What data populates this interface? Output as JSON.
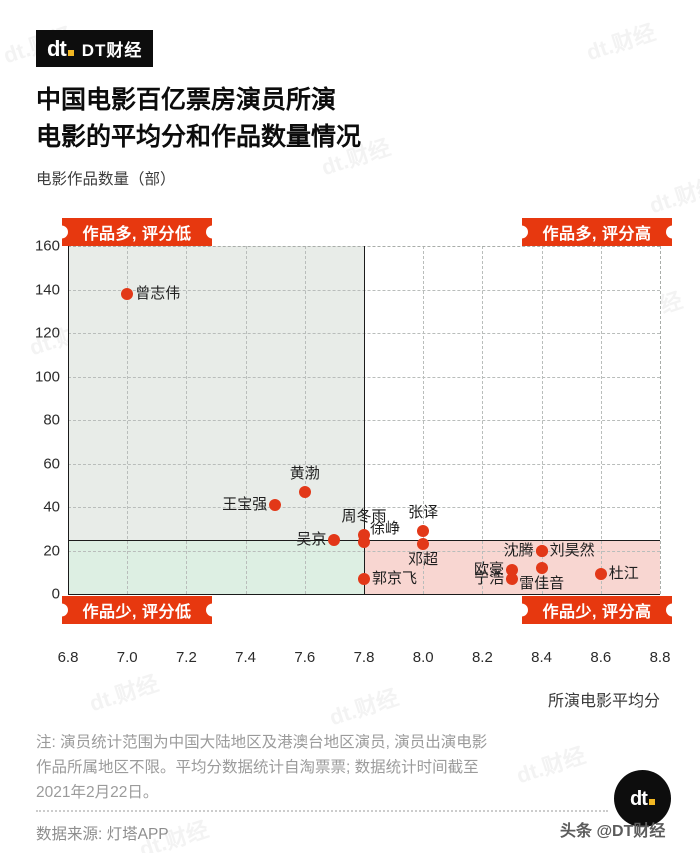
{
  "header": {
    "logo_mark": "dt",
    "brand": "DT财经"
  },
  "title": {
    "line1": "中国电影百亿票房演员所演",
    "line2": "电影的平均分和作品数量情况"
  },
  "watermark": {
    "text": "dt.财经",
    "handle": "头条 @DT财经"
  },
  "chart_data": {
    "type": "scatter",
    "title": "中国电影百亿票房演员所演电影的平均分和作品数量情况",
    "xlabel": "所演电影平均分",
    "ylabel": "电影作品数量（部）",
    "xlim": [
      6.8,
      8.8
    ],
    "ylim": [
      0,
      160
    ],
    "grid": "dashed",
    "legend": "none",
    "x_ticks": [
      6.8,
      7.0,
      7.2,
      7.4,
      7.6,
      7.8,
      8.0,
      8.2,
      8.4,
      8.6,
      8.8
    ],
    "x_tick_labels": [
      "6.8",
      "7.0",
      "7.2",
      "7.4",
      "7.6",
      "7.8",
      "8.0",
      "8.2",
      "8.4",
      "8.6",
      "8.8"
    ],
    "y_ticks": [
      0,
      20,
      40,
      60,
      80,
      100,
      120,
      140,
      160
    ],
    "y_tick_labels": [
      "0",
      "20",
      "40",
      "60",
      "80",
      "100",
      "120",
      "140",
      "160"
    ],
    "quadrant_divider": {
      "x": 7.8,
      "y": 25
    },
    "quadrant_labels": {
      "top_left": "作品多, 评分低",
      "top_right": "作品多, 评分高",
      "bottom_left": "作品少, 评分低",
      "bottom_right": "作品少, 评分高"
    },
    "colors": {
      "badge_red": "#e7380f",
      "dot_red": "#e23818",
      "quad_top_left": "#e8ece8",
      "quad_top_right": "#ffffff",
      "quad_bottom_left": "#ddefe3",
      "quad_bottom_right": "#f8d6d1"
    },
    "points": [
      {
        "name": "曾志伟",
        "x": 7.0,
        "y": 138,
        "label_pos": "right"
      },
      {
        "name": "王宝强",
        "x": 7.5,
        "y": 41,
        "label_pos": "left"
      },
      {
        "name": "黄渤",
        "x": 7.6,
        "y": 47,
        "label_pos": "top"
      },
      {
        "name": "吴京",
        "x": 7.7,
        "y": 25,
        "label_pos": "left"
      },
      {
        "name": "周冬雨",
        "x": 7.8,
        "y": 27,
        "label_pos": "top"
      },
      {
        "name": "徐峥",
        "x": 7.8,
        "y": 24,
        "label_pos": "top-right"
      },
      {
        "name": "郭京飞",
        "x": 7.8,
        "y": 7,
        "label_pos": "right"
      },
      {
        "name": "张译",
        "x": 8.0,
        "y": 29,
        "label_pos": "top"
      },
      {
        "name": "邓超",
        "x": 8.0,
        "y": 23,
        "label_pos": "bottom"
      },
      {
        "name": "沈腾",
        "x": 8.4,
        "y": 20,
        "label_pos": "left"
      },
      {
        "name": "刘昊然",
        "x": 8.4,
        "y": 20,
        "label_pos": "right"
      },
      {
        "name": "雷佳音",
        "x": 8.4,
        "y": 12,
        "label_pos": "bottom"
      },
      {
        "name": "欧豪",
        "x": 8.3,
        "y": 11,
        "label_pos": "left"
      },
      {
        "name": "宁浩",
        "x": 8.3,
        "y": 7,
        "label_pos": "left"
      },
      {
        "name": "杜江",
        "x": 8.6,
        "y": 9,
        "label_pos": "right"
      }
    ]
  },
  "footer": {
    "note_lines": [
      "注: 演员统计范围为中国大陆地区及港澳台地区演员, 演员出演电影",
      "作品所属地区不限。平均分数据统计自淘票票; 数据统计时间截至",
      "2021年2月22日。"
    ],
    "source": "数据来源: 灯塔APP",
    "logo_mark": "dt"
  }
}
